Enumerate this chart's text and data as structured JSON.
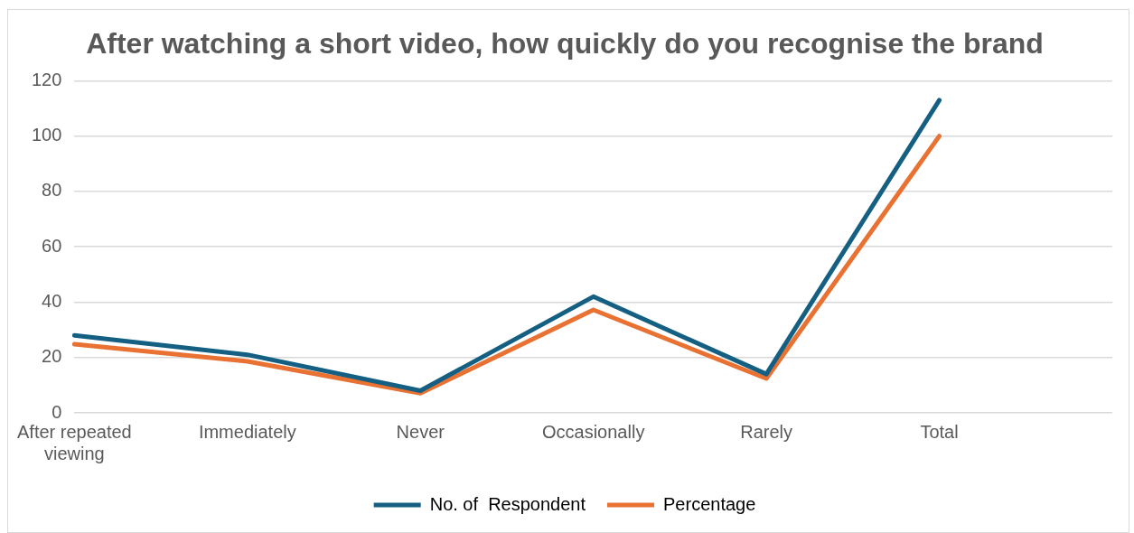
{
  "chart_data": {
    "type": "line",
    "title": "After watching a short video, how quickly do you recognise the brand",
    "categories": [
      "After repeated viewing",
      "Immediately",
      "Never",
      "Occasionally",
      "Rarely",
      "Total",
      null
    ],
    "series": [
      {
        "name": "No. of  Respondent",
        "color": "#156082",
        "values": [
          28,
          21,
          8,
          42,
          14,
          113,
          null
        ]
      },
      {
        "name": "Percentage",
        "color": "#e97132",
        "values": [
          24.8,
          18.6,
          7.1,
          37.2,
          12.4,
          100,
          null
        ]
      }
    ],
    "ylim": [
      0,
      120
    ],
    "yticks": [
      0,
      20,
      40,
      60,
      80,
      100,
      120
    ],
    "grid": "y",
    "legend": "bottom",
    "marker": "none",
    "line_style": "solid"
  }
}
